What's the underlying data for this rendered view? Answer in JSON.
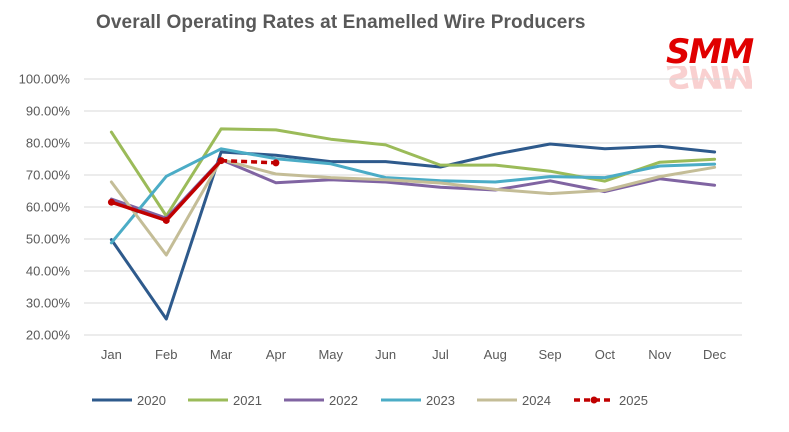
{
  "header": {
    "title": "Overall Operating Rates at Enamelled Wire Producers"
  },
  "logo": {
    "text": "SMM",
    "color": "#e00000"
  },
  "chart_data": {
    "type": "line",
    "title": "Overall Operating Rates at Enamelled Wire Producers",
    "xlabel": "",
    "ylabel": "",
    "ylim": [
      20,
      100
    ],
    "y_ticks": [
      "20.00%",
      "30.00%",
      "40.00%",
      "50.00%",
      "60.00%",
      "70.00%",
      "80.00%",
      "90.00%",
      "100.00%"
    ],
    "y_tick_values": [
      20,
      30,
      40,
      50,
      60,
      70,
      80,
      90,
      100
    ],
    "categories": [
      "Jan",
      "Feb",
      "Mar",
      "Apr",
      "May",
      "Jun",
      "Jul",
      "Aug",
      "Sep",
      "Oct",
      "Nov",
      "Dec"
    ],
    "grid": true,
    "legend_position": "bottom",
    "series": [
      {
        "name": "2020",
        "color": "#2e5a8c",
        "style": "solid",
        "values": [
          49.8,
          25.0,
          77.2,
          76.2,
          74.2,
          74.2,
          72.5,
          76.5,
          79.7,
          78.2,
          79.0,
          77.2
        ]
      },
      {
        "name": "2021",
        "color": "#9bbb59",
        "style": "solid",
        "values": [
          83.4,
          57.2,
          84.4,
          84.1,
          81.2,
          79.4,
          73.1,
          73.1,
          71.2,
          68.1,
          74.0,
          74.9
        ]
      },
      {
        "name": "2022",
        "color": "#8064a2",
        "style": "solid",
        "values": [
          62.5,
          56.5,
          74.8,
          67.6,
          68.5,
          67.8,
          66.2,
          65.3,
          68.2,
          64.8,
          68.8,
          66.8
        ]
      },
      {
        "name": "2023",
        "color": "#4bacc6",
        "style": "solid",
        "values": [
          48.8,
          69.6,
          78.2,
          75.1,
          73.5,
          69.2,
          68.2,
          67.8,
          69.5,
          69.2,
          72.8,
          73.4
        ]
      },
      {
        "name": "2024",
        "color": "#c4bd97",
        "style": "solid",
        "values": [
          67.8,
          45.0,
          74.8,
          70.3,
          69.2,
          68.5,
          67.5,
          65.5,
          64.2,
          65.2,
          69.5,
          72.4
        ]
      },
      {
        "name": "2025",
        "color": "#c00000",
        "style": "dashed",
        "values": [
          61.5,
          55.8,
          74.5,
          73.8,
          null,
          null,
          null,
          null,
          null,
          null,
          null,
          null
        ]
      }
    ]
  }
}
